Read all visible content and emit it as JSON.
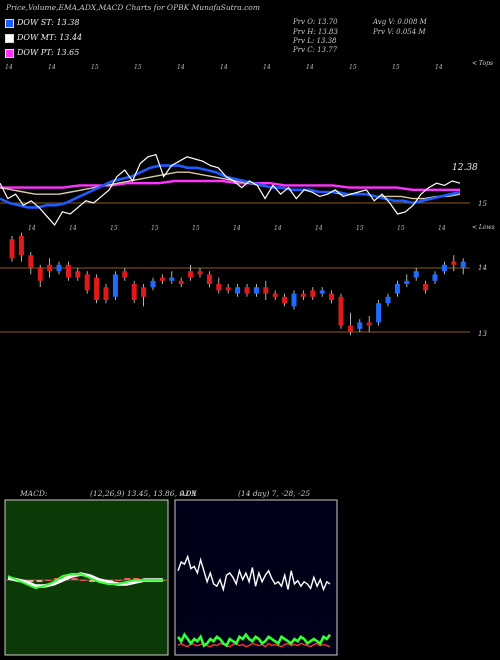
{
  "header": {
    "title": "Price,Volume,EMA,ADX,MACD Charts for OPBK MunafaSutra.com",
    "dow_st_label": "DOW ST: 13.38",
    "dow_mt_label": "DOW MT: 13.44",
    "dow_pt_label": "DOW PT: 13.65",
    "prev_o": "Prv  O: 13.70",
    "prev_h": "Prv  H: 13.83",
    "prev_l": "Prv  L: 13.38",
    "prev_c": "Prv  C: 13.77",
    "avg_v": "Avg V: 0.008  M",
    "prv_v": "Prv  V: 0.054  M",
    "upper_tag": "< Tops",
    "lower_tag": "< Lows",
    "price_tag": "12.38",
    "colors": {
      "dow_st": "#1e5bff",
      "dow_mt": "#ffffff",
      "dow_pt": "#ff33ff"
    }
  },
  "chart_data": [
    {
      "type": "line",
      "title": "",
      "x_tick_labels_top": [
        "14",
        "14",
        "15",
        "15",
        "14",
        "14",
        "14",
        "14",
        "15",
        "15",
        "14"
      ],
      "x_tick_labels_bottom": [
        "14",
        "14",
        "15",
        "15",
        "15",
        "14",
        "14",
        "14",
        "15",
        "15",
        "14"
      ],
      "y_tick_labels": [
        "15"
      ],
      "series": [
        {
          "values": [
            15.45,
            15.1,
            15.2,
            14.95,
            15.05,
            14.9,
            14.7,
            14.5,
            14.8,
            14.75,
            14.9,
            15.05,
            15.0,
            15.15,
            15.3,
            15.6,
            15.75,
            15.5,
            15.9,
            16.05,
            16.1,
            15.6,
            15.85,
            15.95,
            16.05,
            16.0,
            15.95,
            15.85,
            15.8,
            15.6,
            15.5,
            15.35,
            15.5,
            15.4,
            15.1,
            15.4,
            15.2,
            15.35,
            15.1,
            15.3,
            15.25,
            15.15,
            15.2,
            15.3,
            15.15,
            15.2,
            15.25,
            15.3,
            15.05,
            15.2,
            15.0,
            14.75,
            14.8,
            14.95,
            15.2,
            15.35,
            15.45,
            15.4,
            15.5,
            15.45
          ]
        },
        {
          "values": [
            15.1,
            15.0,
            14.95,
            14.9,
            14.9,
            14.95,
            14.95,
            15.0,
            15.1,
            15.2,
            15.3,
            15.4,
            15.5,
            15.55,
            15.6,
            15.7,
            15.8,
            15.85,
            15.85,
            15.85,
            15.8,
            15.8,
            15.75,
            15.7,
            15.6,
            15.55,
            15.5,
            15.45,
            15.4,
            15.35,
            15.35,
            15.3,
            15.3,
            15.3,
            15.25,
            15.25,
            15.25,
            15.2,
            15.2,
            15.2,
            15.15,
            15.1,
            15.05,
            15.05,
            15.0,
            15.05,
            15.1,
            15.15,
            15.2,
            15.25
          ]
        },
        {
          "values": [
            15.35,
            15.3,
            15.25,
            15.2,
            15.2,
            15.2,
            15.25,
            15.3,
            15.35,
            15.4,
            15.45,
            15.5,
            15.55,
            15.6,
            15.65,
            15.7,
            15.7,
            15.65,
            15.6,
            15.55,
            15.5,
            15.45,
            15.4,
            15.35,
            15.35,
            15.3,
            15.3,
            15.25,
            15.25,
            15.2,
            15.2,
            15.2,
            15.15,
            15.15,
            15.15,
            15.1,
            15.1,
            15.15,
            15.15,
            15.2
          ]
        },
        {
          "values": [
            15.35,
            15.35,
            15.35,
            15.35,
            15.35,
            15.4,
            15.4,
            15.4,
            15.45,
            15.45,
            15.45,
            15.5,
            15.5,
            15.5,
            15.5,
            15.45,
            15.45,
            15.45,
            15.4,
            15.4,
            15.4,
            15.4,
            15.35,
            15.35,
            15.35,
            15.35,
            15.3,
            15.3,
            15.3,
            15.3
          ]
        }
      ]
    },
    {
      "type": "bar",
      "title": "",
      "y_tick_labels": [
        "14",
        "13"
      ],
      "candles": [
        {
          "o": 14.15,
          "c": 14.45,
          "h": 14.5,
          "l": 14.1,
          "up": false
        },
        {
          "o": 14.5,
          "c": 14.2,
          "h": 14.55,
          "l": 14.1,
          "up": false
        },
        {
          "o": 14.2,
          "c": 14.0,
          "h": 14.25,
          "l": 13.9,
          "up": false
        },
        {
          "o": 14.0,
          "c": 13.8,
          "h": 14.05,
          "l": 13.7,
          "up": false
        },
        {
          "o": 14.05,
          "c": 13.95,
          "h": 14.15,
          "l": 13.85,
          "up": false
        },
        {
          "o": 13.95,
          "c": 14.05,
          "h": 14.1,
          "l": 13.9,
          "up": true
        },
        {
          "o": 14.05,
          "c": 13.85,
          "h": 14.1,
          "l": 13.8,
          "up": false
        },
        {
          "o": 13.85,
          "c": 13.95,
          "h": 14.0,
          "l": 13.8,
          "up": false
        },
        {
          "o": 13.9,
          "c": 13.65,
          "h": 13.95,
          "l": 13.6,
          "up": false
        },
        {
          "o": 13.85,
          "c": 13.5,
          "h": 13.9,
          "l": 13.45,
          "up": false
        },
        {
          "o": 13.7,
          "c": 13.5,
          "h": 13.75,
          "l": 13.45,
          "up": false
        },
        {
          "o": 13.55,
          "c": 13.9,
          "h": 13.95,
          "l": 13.5,
          "up": true
        },
        {
          "o": 13.85,
          "c": 13.95,
          "h": 14.0,
          "l": 13.8,
          "up": false
        },
        {
          "o": 13.75,
          "c": 13.5,
          "h": 13.8,
          "l": 13.45,
          "up": false
        },
        {
          "o": 13.55,
          "c": 13.7,
          "h": 13.75,
          "l": 13.4,
          "up": false
        },
        {
          "o": 13.7,
          "c": 13.8,
          "h": 13.85,
          "l": 13.65,
          "up": true
        },
        {
          "o": 13.8,
          "c": 13.85,
          "h": 13.9,
          "l": 13.75,
          "up": false
        },
        {
          "o": 13.8,
          "c": 13.85,
          "h": 13.95,
          "l": 13.75,
          "up": true
        },
        {
          "o": 13.75,
          "c": 13.8,
          "h": 13.85,
          "l": 13.7,
          "up": false
        },
        {
          "o": 13.85,
          "c": 13.95,
          "h": 14.05,
          "l": 13.8,
          "up": false
        },
        {
          "o": 13.95,
          "c": 13.9,
          "h": 14.0,
          "l": 13.85,
          "up": false
        },
        {
          "o": 13.9,
          "c": 13.75,
          "h": 13.95,
          "l": 13.7,
          "up": false
        },
        {
          "o": 13.75,
          "c": 13.65,
          "h": 13.85,
          "l": 13.6,
          "up": false
        },
        {
          "o": 13.65,
          "c": 13.7,
          "h": 13.75,
          "l": 13.6,
          "up": false
        },
        {
          "o": 13.6,
          "c": 13.7,
          "h": 13.75,
          "l": 13.55,
          "up": true
        },
        {
          "o": 13.7,
          "c": 13.6,
          "h": 13.75,
          "l": 13.55,
          "up": false
        },
        {
          "o": 13.6,
          "c": 13.7,
          "h": 13.75,
          "l": 13.55,
          "up": true
        },
        {
          "o": 13.7,
          "c": 13.6,
          "h": 13.8,
          "l": 13.5,
          "up": false
        },
        {
          "o": 13.6,
          "c": 13.55,
          "h": 13.65,
          "l": 13.5,
          "up": false
        },
        {
          "o": 13.55,
          "c": 13.45,
          "h": 13.6,
          "l": 13.4,
          "up": false
        },
        {
          "o": 13.4,
          "c": 13.6,
          "h": 13.65,
          "l": 13.35,
          "up": true
        },
        {
          "o": 13.6,
          "c": 13.55,
          "h": 13.65,
          "l": 13.5,
          "up": false
        },
        {
          "o": 13.55,
          "c": 13.65,
          "h": 13.7,
          "l": 13.5,
          "up": false
        },
        {
          "o": 13.6,
          "c": 13.65,
          "h": 13.7,
          "l": 13.55,
          "up": true
        },
        {
          "o": 13.6,
          "c": 13.5,
          "h": 13.65,
          "l": 13.45,
          "up": false
        },
        {
          "o": 13.55,
          "c": 13.1,
          "h": 13.6,
          "l": 13.05,
          "up": false
        },
        {
          "o": 13.1,
          "c": 13.0,
          "h": 13.3,
          "l": 12.95,
          "up": false
        },
        {
          "o": 13.05,
          "c": 13.15,
          "h": 13.2,
          "l": 13.0,
          "up": true
        },
        {
          "o": 13.15,
          "c": 13.1,
          "h": 13.25,
          "l": 13.0,
          "up": false
        },
        {
          "o": 13.15,
          "c": 13.45,
          "h": 13.5,
          "l": 13.1,
          "up": true
        },
        {
          "o": 13.45,
          "c": 13.55,
          "h": 13.6,
          "l": 13.4,
          "up": true
        },
        {
          "o": 13.6,
          "c": 13.75,
          "h": 13.8,
          "l": 13.55,
          "up": true
        },
        {
          "o": 13.75,
          "c": 13.8,
          "h": 13.9,
          "l": 13.7,
          "up": true
        },
        {
          "o": 13.85,
          "c": 13.95,
          "h": 14.0,
          "l": 13.8,
          "up": true
        },
        {
          "o": 13.75,
          "c": 13.65,
          "h": 13.8,
          "l": 13.6,
          "up": false
        },
        {
          "o": 13.8,
          "c": 13.9,
          "h": 13.95,
          "l": 13.75,
          "up": true
        },
        {
          "o": 13.95,
          "c": 14.05,
          "h": 14.1,
          "l": 13.9,
          "up": true
        },
        {
          "o": 14.1,
          "c": 14.05,
          "h": 14.2,
          "l": 13.95,
          "up": false
        },
        {
          "o": 14.0,
          "c": 14.1,
          "h": 14.15,
          "l": 13.9,
          "up": true
        }
      ]
    },
    {
      "type": "line",
      "title": "MACD:",
      "params_text": "(12,26,9) 13.45, 13.86, 0.09",
      "series": [
        {
          "values": [
            0.02,
            0.0,
            -0.02,
            -0.04,
            -0.03,
            -0.01,
            0.02,
            0.03,
            0.03,
            0.01,
            -0.01,
            -0.02,
            -0.02,
            -0.01,
            0.0,
            0.0,
            0.0,
            0.0
          ]
        },
        {
          "values": [
            0.01,
            0.0,
            -0.01,
            -0.03,
            -0.03,
            -0.02,
            0.0,
            0.02,
            0.03,
            0.02,
            0.0,
            -0.01,
            -0.02,
            -0.02,
            -0.01,
            0.0,
            0.0,
            0.0
          ]
        }
      ],
      "hist": [
        0.01,
        0.0,
        -0.01,
        -0.01,
        0.0,
        0.01,
        0.02,
        0.01,
        0.0,
        -0.01,
        -0.01,
        -0.01,
        0.0,
        0.01,
        0.01,
        0.0,
        0.0,
        0.0
      ]
    },
    {
      "type": "line",
      "title": "ADX",
      "params_text": "(14  day) 7, -28, -25",
      "series": [
        {
          "values": [
            72,
            80,
            78,
            85,
            74,
            76,
            70,
            82,
            72,
            62,
            70,
            60,
            58,
            64,
            55,
            68,
            70,
            66,
            60,
            72,
            64,
            70,
            62,
            75,
            58,
            70,
            62,
            68,
            72,
            65,
            60,
            62,
            58,
            68,
            55,
            72,
            60,
            63,
            58,
            62,
            60,
            56,
            66,
            58,
            64,
            55,
            62,
            60
          ]
        },
        {
          "values": [
            12,
            8,
            14,
            10,
            6,
            10,
            8,
            12,
            4,
            6,
            10,
            8,
            12,
            10,
            6,
            4,
            10,
            8,
            6,
            12,
            10,
            14,
            10,
            8,
            12,
            10,
            6,
            8,
            12,
            10,
            8,
            6,
            12,
            10,
            8,
            6,
            10,
            8,
            12,
            10,
            6,
            8,
            10,
            8,
            6,
            12,
            10,
            14
          ]
        },
        {
          "values": [
            4,
            6,
            4,
            3,
            6,
            5,
            4,
            5,
            6,
            4,
            3,
            5,
            4,
            6,
            5,
            4,
            3,
            5,
            6,
            4,
            5,
            3,
            4,
            6,
            5,
            4,
            5,
            3,
            6,
            4,
            5,
            4,
            3,
            5,
            6,
            4,
            5,
            4,
            6,
            5,
            4,
            3,
            5,
            6,
            4,
            5,
            4,
            3
          ]
        }
      ]
    }
  ]
}
